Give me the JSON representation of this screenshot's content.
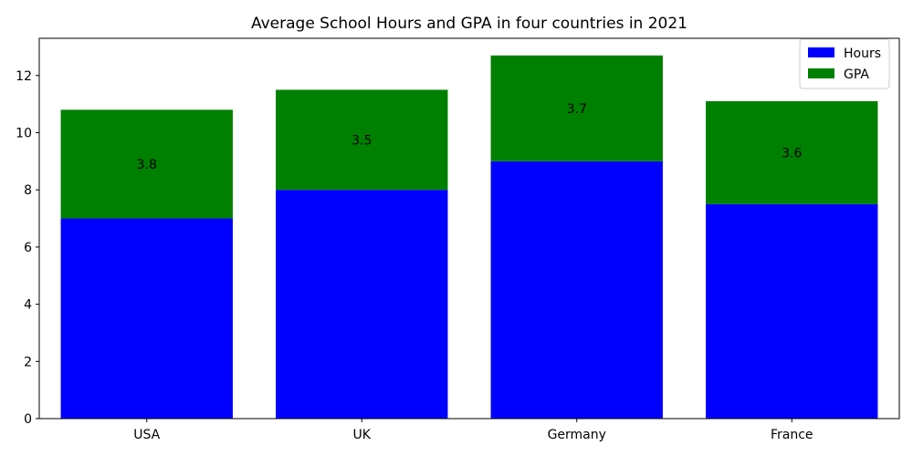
{
  "chart_data": {
    "type": "bar",
    "stacked": true,
    "title": "Average School Hours and GPA in four countries in 2021",
    "xlabel": "",
    "ylabel": "",
    "categories": [
      "USA",
      "UK",
      "Germany",
      "France"
    ],
    "series": [
      {
        "name": "Hours",
        "values": [
          7,
          8,
          9,
          7.5
        ],
        "color": "#0000ff"
      },
      {
        "name": "GPA",
        "values": [
          3.8,
          3.5,
          3.7,
          3.6
        ],
        "color": "#008000"
      }
    ],
    "data_labels": [
      "3.8",
      "3.5",
      "3.7",
      "3.6"
    ],
    "ylim": [
      0,
      13.3
    ],
    "yticks": [
      0,
      2,
      4,
      6,
      8,
      10,
      12
    ],
    "legend": "top-right",
    "grid": false
  }
}
